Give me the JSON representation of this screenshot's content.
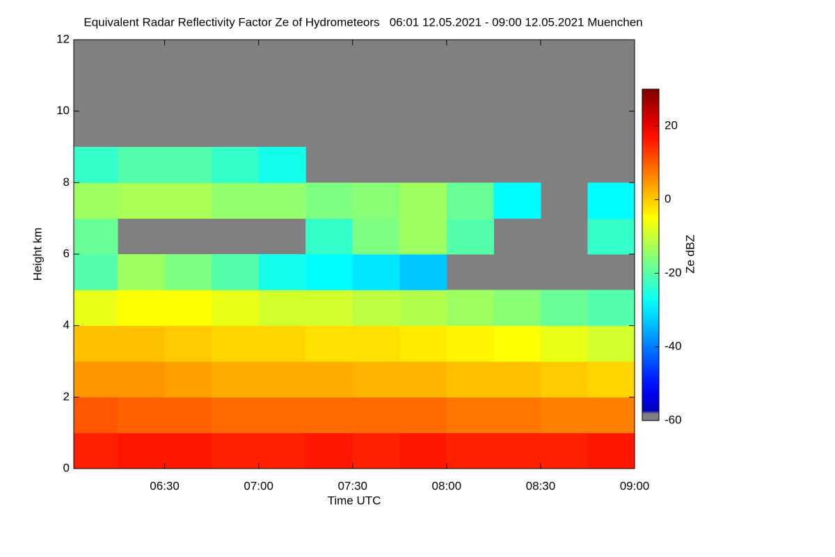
{
  "chart_data": {
    "type": "heatmap",
    "title": "Equivalent Radar Reflectivity Factor Ze of Hydrometeors   06:01 12.05.2021 - 09:00 12.05.2021 Muenchen",
    "xlabel": "Time UTC",
    "ylabel": "Height km",
    "colorbar_label": "Ze dBZ",
    "colormap": "jet",
    "missing_color": "#808080",
    "xlim": [
      "06:01",
      "09:00"
    ],
    "xticks": [
      "06:30",
      "07:00",
      "07:30",
      "08:00",
      "08:30",
      "09:00"
    ],
    "x": [
      "06:01",
      "06:15",
      "06:30",
      "06:45",
      "07:00",
      "07:15",
      "07:30",
      "07:45",
      "08:00",
      "08:15",
      "08:30",
      "08:45",
      "09:00"
    ],
    "y": [
      0,
      1,
      2,
      3,
      4,
      5,
      6,
      7,
      8,
      9,
      10,
      11,
      12
    ],
    "ylim": [
      0,
      12
    ],
    "yticks": [
      0,
      2,
      4,
      6,
      8,
      10,
      12
    ],
    "zlim": [
      -60,
      30
    ],
    "zticks": [
      -60,
      -40,
      -20,
      0,
      20
    ],
    "values": [
      [
        15,
        16,
        16,
        15,
        15,
        16,
        15,
        16,
        15,
        15,
        15,
        16
      ],
      [
        10,
        9,
        9,
        8,
        8,
        8,
        8,
        8,
        7,
        7,
        6,
        6
      ],
      [
        4,
        4,
        3,
        2,
        2,
        2,
        1,
        1,
        0,
        0,
        -1,
        -2
      ],
      [
        0,
        0,
        -1,
        -2,
        -2,
        -3,
        -3,
        -4,
        -5,
        -6,
        -8,
        -10
      ],
      [
        -8,
        -6,
        -6,
        -8,
        -10,
        -10,
        -12,
        -13,
        -15,
        -17,
        -20,
        -22
      ],
      [
        -22,
        -15,
        -18,
        -22,
        -28,
        -30,
        -32,
        -35,
        null,
        null,
        null,
        null
      ],
      [
        -20,
        null,
        null,
        null,
        null,
        -25,
        -18,
        -15,
        -22,
        null,
        null,
        -25
      ],
      [
        -15,
        -14,
        -14,
        -16,
        -16,
        -18,
        -17,
        -15,
        -20,
        -30,
        null,
        -30
      ],
      [
        -25,
        -22,
        -22,
        -25,
        -28,
        null,
        null,
        null,
        null,
        null,
        null,
        null
      ],
      [
        null,
        null,
        null,
        null,
        null,
        null,
        null,
        null,
        null,
        null,
        null,
        null
      ],
      [
        null,
        null,
        null,
        null,
        null,
        null,
        null,
        null,
        null,
        null,
        null,
        null
      ],
      [
        null,
        null,
        null,
        null,
        null,
        null,
        null,
        null,
        null,
        null,
        null,
        null
      ]
    ]
  }
}
